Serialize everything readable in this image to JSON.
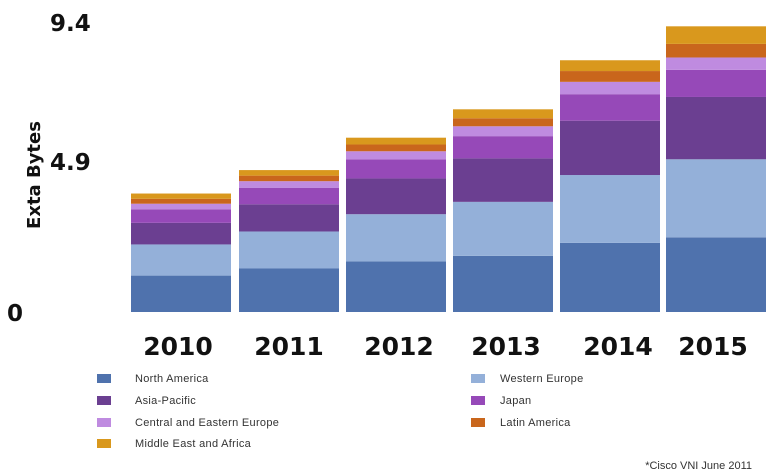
{
  "chart_data": {
    "type": "bar",
    "stacked": true,
    "ylabel": "Exta Bytes",
    "y_ticks": [
      "0",
      "4.9",
      "9.4"
    ],
    "ylim": [
      0,
      9.4
    ],
    "categories": [
      "2010",
      "2011",
      "2012",
      "2013",
      "2014",
      "2015"
    ],
    "series": [
      {
        "name": "North America",
        "color": "#4f72ad",
        "values": [
          1.18,
          1.41,
          1.64,
          1.82,
          2.24,
          2.42
        ]
      },
      {
        "name": "Western Europe",
        "color": "#94b0d9",
        "values": [
          1.01,
          1.2,
          1.53,
          1.75,
          2.2,
          2.53
        ]
      },
      {
        "name": "Asia-Pacific",
        "color": "#6b3f91",
        "values": [
          0.7,
          0.88,
          1.16,
          1.41,
          1.76,
          2.02
        ]
      },
      {
        "name": "Japan",
        "color": "#9649b8",
        "values": [
          0.44,
          0.53,
          0.62,
          0.72,
          0.86,
          0.88
        ]
      },
      {
        "name": "Central and Eastern Europe",
        "color": "#bf8be0",
        "values": [
          0.18,
          0.22,
          0.26,
          0.32,
          0.4,
          0.4
        ]
      },
      {
        "name": "Latin America",
        "color": "#c9661c",
        "values": [
          0.16,
          0.18,
          0.22,
          0.26,
          0.35,
          0.44
        ]
      },
      {
        "name": "Middle East and Africa",
        "color": "#d9981d",
        "values": [
          0.17,
          0.18,
          0.22,
          0.29,
          0.35,
          0.57
        ]
      }
    ],
    "legend_position": "bottom",
    "grid": false
  },
  "legend_rows": [
    [
      "North America",
      "Western Europe"
    ],
    [
      "Asia-Pacific",
      "Japan"
    ],
    [
      "Central and Eastern Europe",
      "Latin America"
    ],
    [
      "Middle East and Africa"
    ]
  ],
  "source_note": "*Cisco VNI June 2011"
}
